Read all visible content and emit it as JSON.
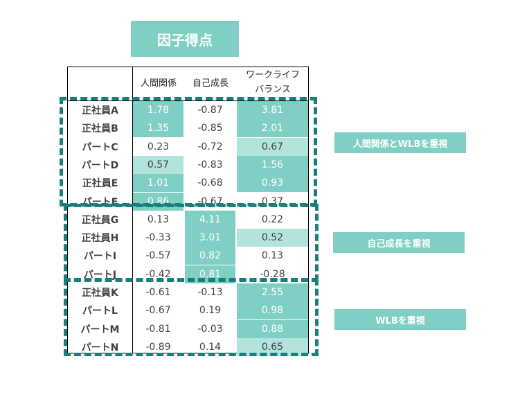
{
  "title": "因子得点",
  "chart_data": {
    "type": "table",
    "columns": [
      "人間関係",
      "自己成長",
      "ワークライフ\nバランス"
    ],
    "rows": [
      {
        "label": "正社員A",
        "values": [
          "1.78",
          "-0.87",
          "3.81"
        ],
        "shade": [
          "hi",
          "",
          "hi"
        ]
      },
      {
        "label": "正社員B",
        "values": [
          "1.35",
          "-0.85",
          "2.01"
        ],
        "shade": [
          "hi",
          "",
          "hi"
        ]
      },
      {
        "label": "パートC",
        "values": [
          "0.23",
          "-0.72",
          "0.67"
        ],
        "shade": [
          "",
          "",
          "mid"
        ]
      },
      {
        "label": "パートD",
        "values": [
          "0.57",
          "-0.83",
          "1.56"
        ],
        "shade": [
          "mid",
          "",
          "hi"
        ]
      },
      {
        "label": "正社員E",
        "values": [
          "1.01",
          "-0.68",
          "0.93"
        ],
        "shade": [
          "hi",
          "",
          "hi"
        ]
      },
      {
        "label": "パートF",
        "values": [
          "0.86",
          "-0.67",
          "0.37"
        ],
        "shade": [
          "hi",
          "",
          ""
        ]
      },
      {
        "label": "正社員G",
        "values": [
          "0.13",
          "4.11",
          "0.22"
        ],
        "shade": [
          "",
          "hi",
          ""
        ]
      },
      {
        "label": "正社員H",
        "values": [
          "-0.33",
          "3.01",
          "0.52"
        ],
        "shade": [
          "",
          "hi",
          "mid"
        ]
      },
      {
        "label": "パートI",
        "values": [
          "-0.57",
          "0.82",
          "0.13"
        ],
        "shade": [
          "",
          "hi",
          ""
        ]
      },
      {
        "label": "パートJ",
        "values": [
          "-0.42",
          "0.81",
          "-0.28"
        ],
        "shade": [
          "",
          "hi",
          ""
        ]
      },
      {
        "label": "正社員K",
        "values": [
          "-0.61",
          "-0.13",
          "2.55"
        ],
        "shade": [
          "",
          "",
          "hi"
        ]
      },
      {
        "label": "パートL",
        "values": [
          "-0.67",
          "0.19",
          "0.98"
        ],
        "shade": [
          "",
          "",
          "hi"
        ]
      },
      {
        "label": "パートM",
        "values": [
          "-0.81",
          "-0.03",
          "0.88"
        ],
        "shade": [
          "",
          "",
          "hi"
        ]
      },
      {
        "label": "パートN",
        "values": [
          "-0.89",
          "0.14",
          "0.65"
        ],
        "shade": [
          "",
          "",
          "mid"
        ]
      }
    ],
    "groups": [
      {
        "label": "人間関係とWLBを重視",
        "rows": [
          0,
          5
        ]
      },
      {
        "label": "自己成長を重視",
        "rows": [
          6,
          9
        ]
      },
      {
        "label": "WLBを重視",
        "rows": [
          10,
          13
        ]
      }
    ],
    "colors": {
      "highlight": "#80cfc5",
      "medium": "#b3e3dd",
      "dash": "#1a7f7a"
    }
  }
}
